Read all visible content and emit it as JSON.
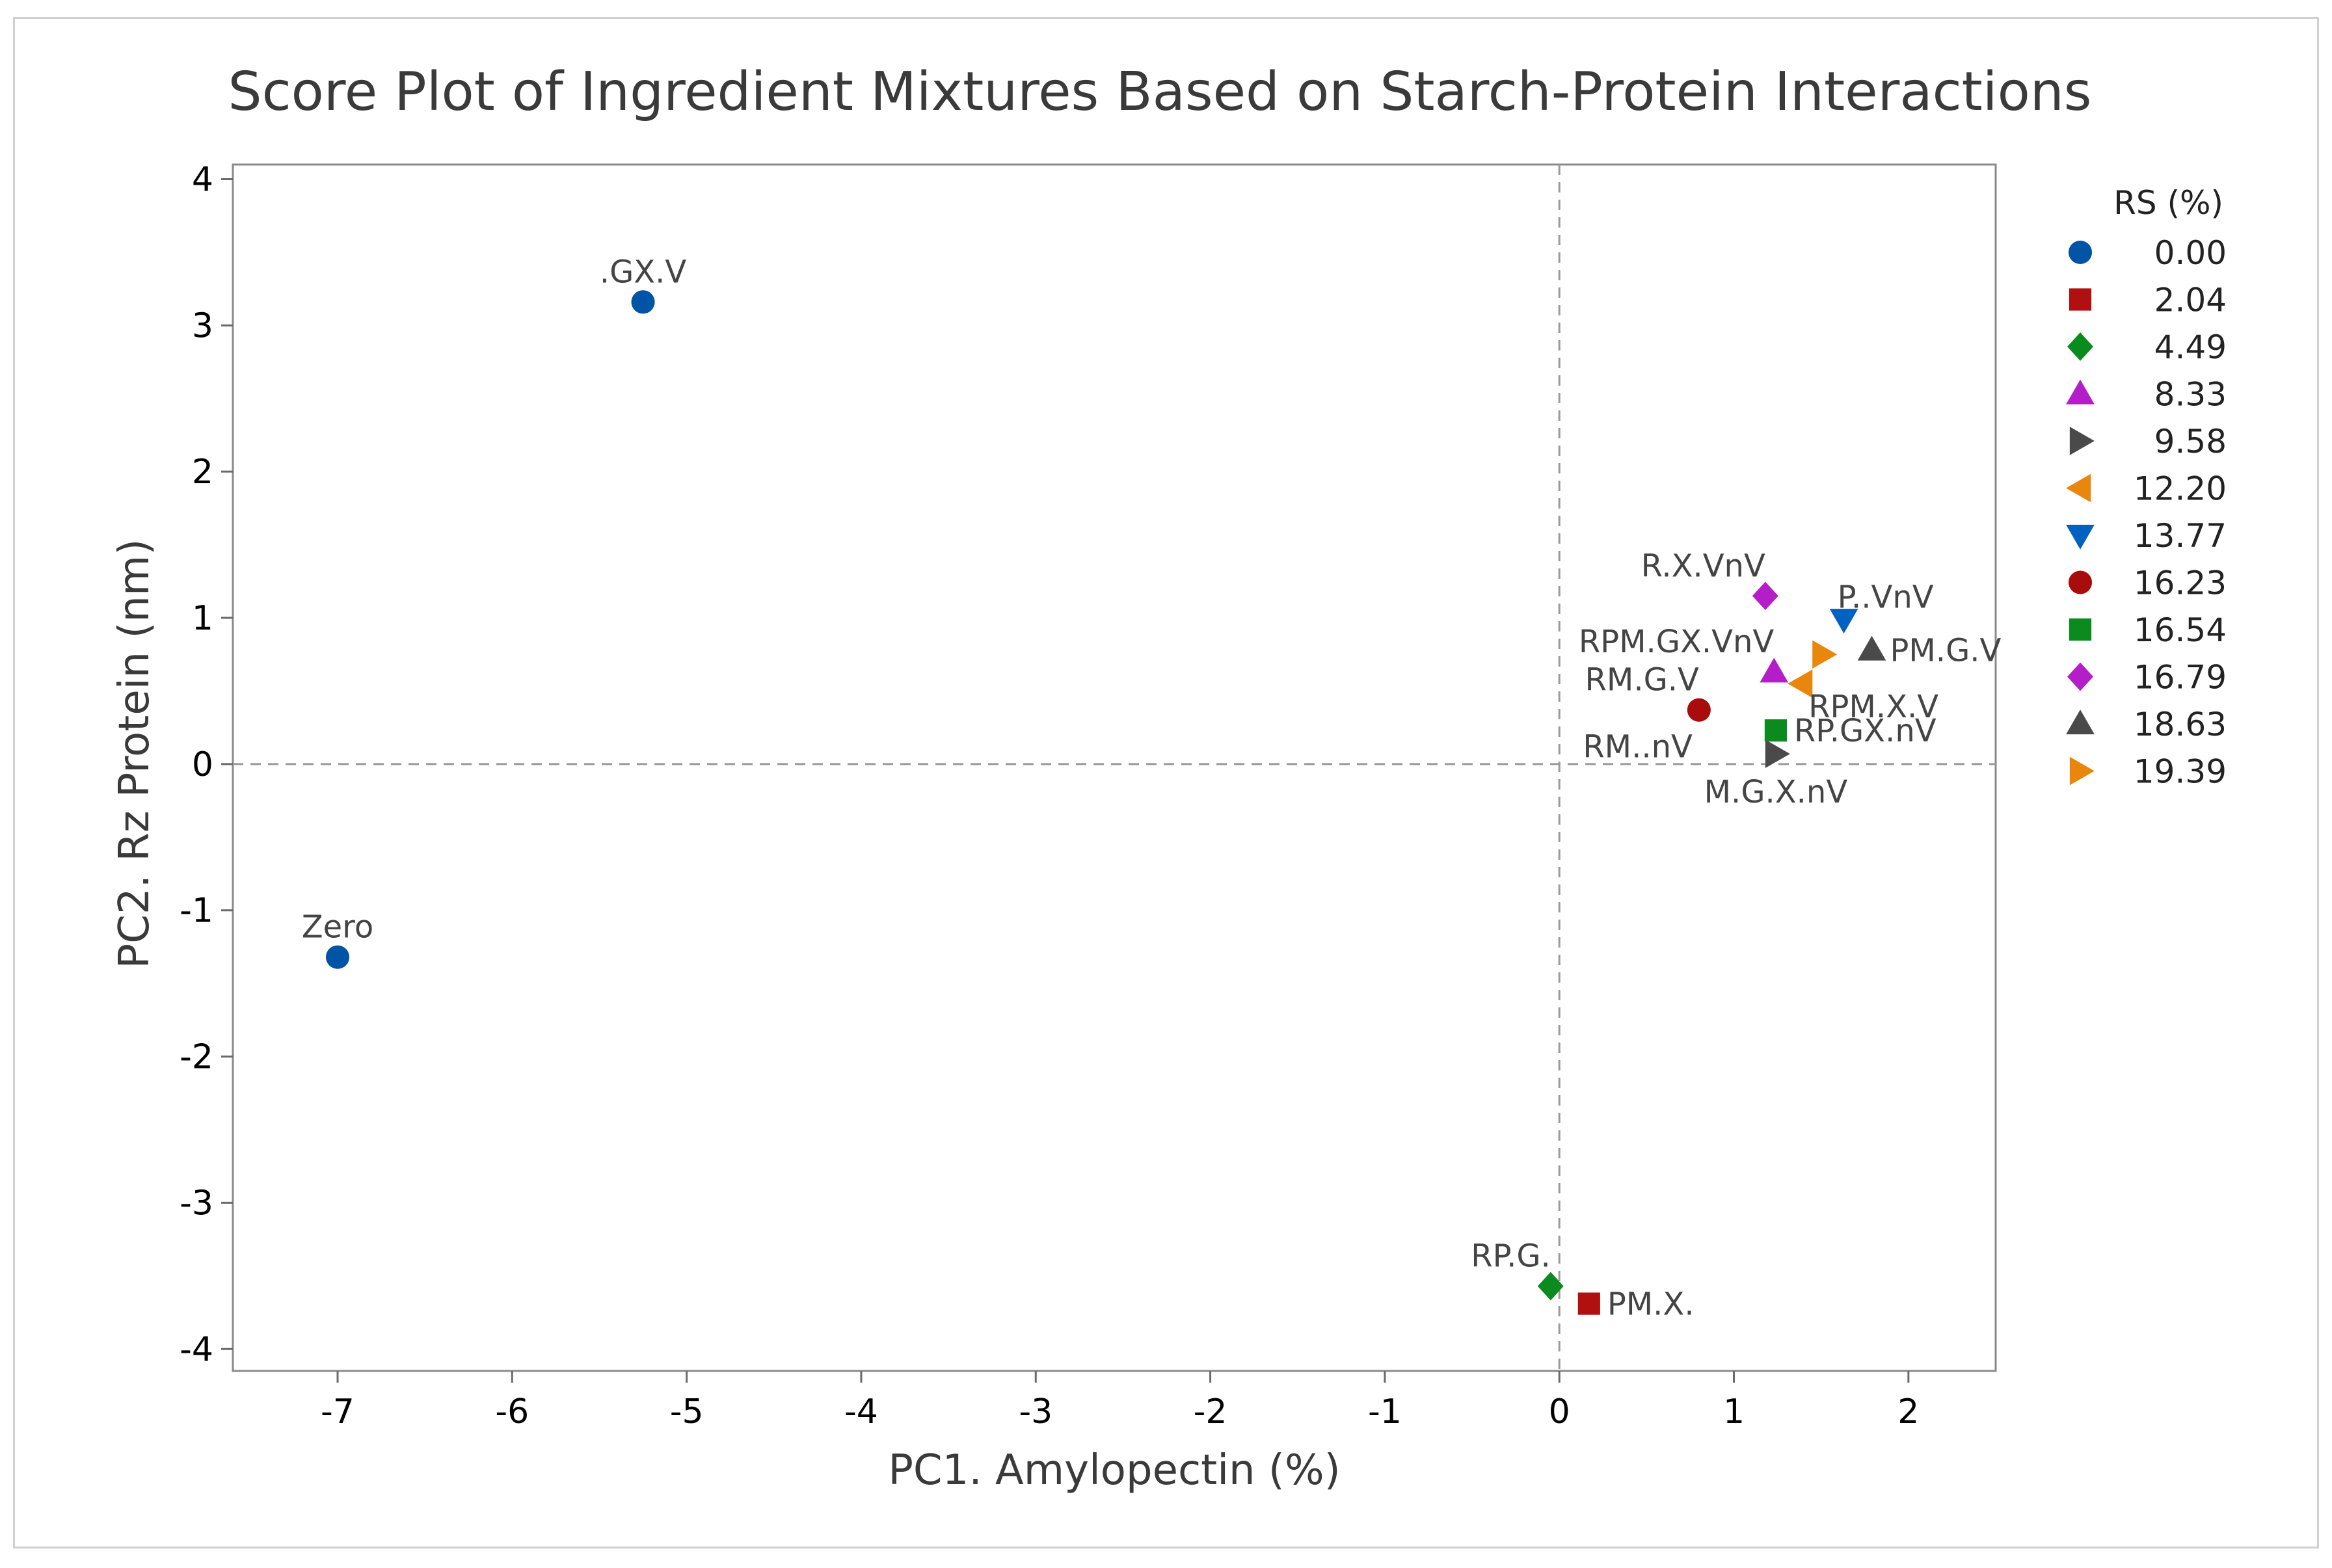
{
  "chart_data": {
    "type": "scatter",
    "title": "Score Plot of Ingredient Mixtures Based on Starch-Protein Interactions",
    "xlabel": "PC1. Amylopectin (%)",
    "ylabel": "PC2. Rz Protein (nm)",
    "xlim": [
      -7.6,
      2.5
    ],
    "ylim": [
      -4.15,
      4.1
    ],
    "xticks": [
      -7,
      -6,
      -5,
      -4,
      -3,
      -2,
      -1,
      0,
      1,
      2
    ],
    "yticks": [
      -4,
      -3,
      -2,
      -1,
      0,
      1,
      2,
      3,
      4
    ],
    "reference_lines": {
      "x": 0,
      "y": 0,
      "style": "dashed"
    },
    "grid": false,
    "legend": {
      "title": "RS (%)",
      "position": "right",
      "entries": [
        {
          "label": "0.00",
          "marker": "circle",
          "color": "#0054a6"
        },
        {
          "label": "2.04",
          "marker": "square",
          "color": "#b01010"
        },
        {
          "label": "4.49",
          "marker": "diamond",
          "color": "#0b8a1e"
        },
        {
          "label": "8.33",
          "marker": "triangle-up",
          "color": "#b41ec8"
        },
        {
          "label": "9.58",
          "marker": "triangle-right",
          "color": "#4a4a4a"
        },
        {
          "label": "12.20",
          "marker": "triangle-left",
          "color": "#e8870c"
        },
        {
          "label": "13.77",
          "marker": "triangle-down",
          "color": "#0062c0"
        },
        {
          "label": "16.23",
          "marker": "circle",
          "color": "#a80c0c"
        },
        {
          "label": "16.54",
          "marker": "square",
          "color": "#0b8a1e"
        },
        {
          "label": "16.79",
          "marker": "diamond",
          "color": "#b41ec8"
        },
        {
          "label": "18.63",
          "marker": "triangle-up",
          "color": "#4a4a4a"
        },
        {
          "label": "19.39",
          "marker": "triangle-right",
          "color": "#e8870c"
        }
      ]
    },
    "series": [
      {
        "label": "Zero",
        "x": -7.0,
        "y": -1.32,
        "rs": "0.00",
        "label_pos": "above"
      },
      {
        "label": ".GX.V",
        "x": -5.25,
        "y": 3.16,
        "rs": "0.00",
        "label_pos": "above"
      },
      {
        "label": "PM.X.",
        "x": 0.17,
        "y": -3.69,
        "rs": "2.04",
        "label_pos": "right"
      },
      {
        "label": "RP.G.",
        "x": -0.05,
        "y": -3.57,
        "rs": "4.49",
        "label_pos": "above-left"
      },
      {
        "label": "RPM.GX.VnV",
        "x": 1.23,
        "y": 0.63,
        "rs": "8.33",
        "label_pos": "above-left"
      },
      {
        "label": "M.G.X.nV",
        "x": 1.24,
        "y": 0.07,
        "rs": "9.58",
        "label_pos": "below"
      },
      {
        "label": "RPM.X.V",
        "x": 1.39,
        "y": 0.55,
        "rs": "12.20",
        "label_pos": "below-right"
      },
      {
        "label": "P..VnV",
        "x": 1.63,
        "y": 0.99,
        "rs": "13.77",
        "label_pos": "above-right"
      },
      {
        "label": "RM.G.V",
        "x": 0.8,
        "y": 0.37,
        "rs": "16.23",
        "label_pos": "above-left"
      },
      {
        "label": "RM..nV",
        "x": 0.8,
        "y": 0.37,
        "rs": "16.23",
        "label_pos": "below-left"
      },
      {
        "label": "RP.GX.nV",
        "x": 1.24,
        "y": 0.23,
        "rs": "16.54",
        "label_pos": "right"
      },
      {
        "label": "R.X.VnV",
        "x": 1.18,
        "y": 1.15,
        "rs": "16.79",
        "label_pos": "above-left"
      },
      {
        "label": "PM.G.V",
        "x": 1.79,
        "y": 0.78,
        "rs": "18.63",
        "label_pos": "right"
      },
      {
        "label": "",
        "x": 1.51,
        "y": 0.75,
        "rs": "19.39",
        "label_pos": "none"
      }
    ]
  }
}
